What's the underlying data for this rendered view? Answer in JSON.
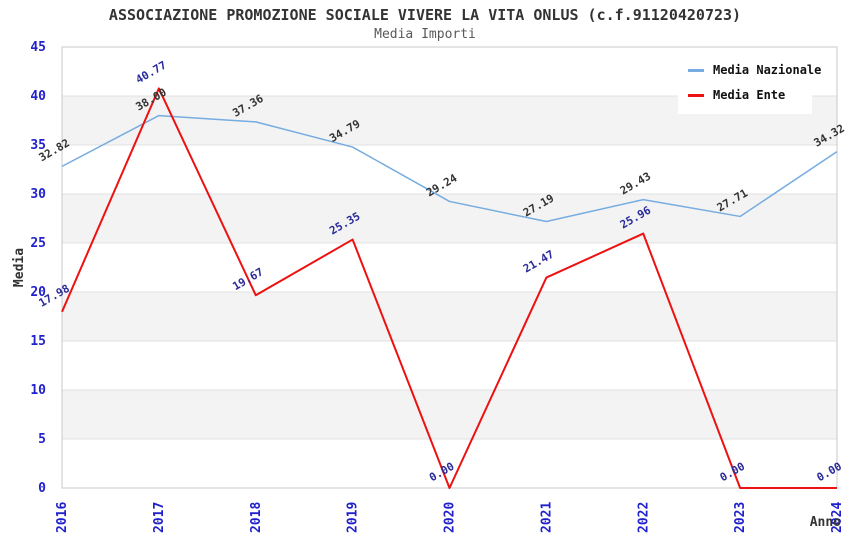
{
  "header": {
    "note": ""
  },
  "chart_data": {
    "type": "line",
    "title": "ASSOCIAZIONE PROMOZIONE SOCIALE VIVERE LA VITA ONLUS (c.f.91120420723)",
    "subtitle": "Media Importi",
    "xlabel": "Anno",
    "ylabel": "Media",
    "x": [
      2016,
      2017,
      2018,
      2019,
      2020,
      2021,
      2022,
      2023,
      2024
    ],
    "series": [
      {
        "name": "Media Nazionale",
        "color": "#76ace0",
        "label_color": "#333333",
        "line_width": 1.5,
        "values": [
          32.82,
          38.0,
          37.36,
          34.79,
          29.24,
          27.19,
          29.43,
          27.71,
          34.32
        ]
      },
      {
        "name": "Media Ente",
        "color": "#ee1111",
        "label_color": "#2b2b99",
        "line_width": 2,
        "values": [
          17.98,
          40.77,
          19.67,
          25.35,
          0.0,
          21.47,
          25.96,
          0.0,
          0.0
        ]
      }
    ],
    "ylim": [
      0,
      45
    ],
    "ytick_step": 5,
    "yticks": [
      0,
      5,
      10,
      15,
      20,
      25,
      30,
      35,
      40,
      45
    ],
    "grid": "horizontal",
    "band_colors": [
      "#ffffff",
      "#f3f3f3"
    ],
    "gridline_color": "#e0e0e0",
    "border_color": "#c8c8c8",
    "tick_label_color": "#2121cc",
    "axis_label_color": "#333333",
    "legend_position": "top-right",
    "x_tick_rotation": -90,
    "point_label_rotation": -30
  }
}
